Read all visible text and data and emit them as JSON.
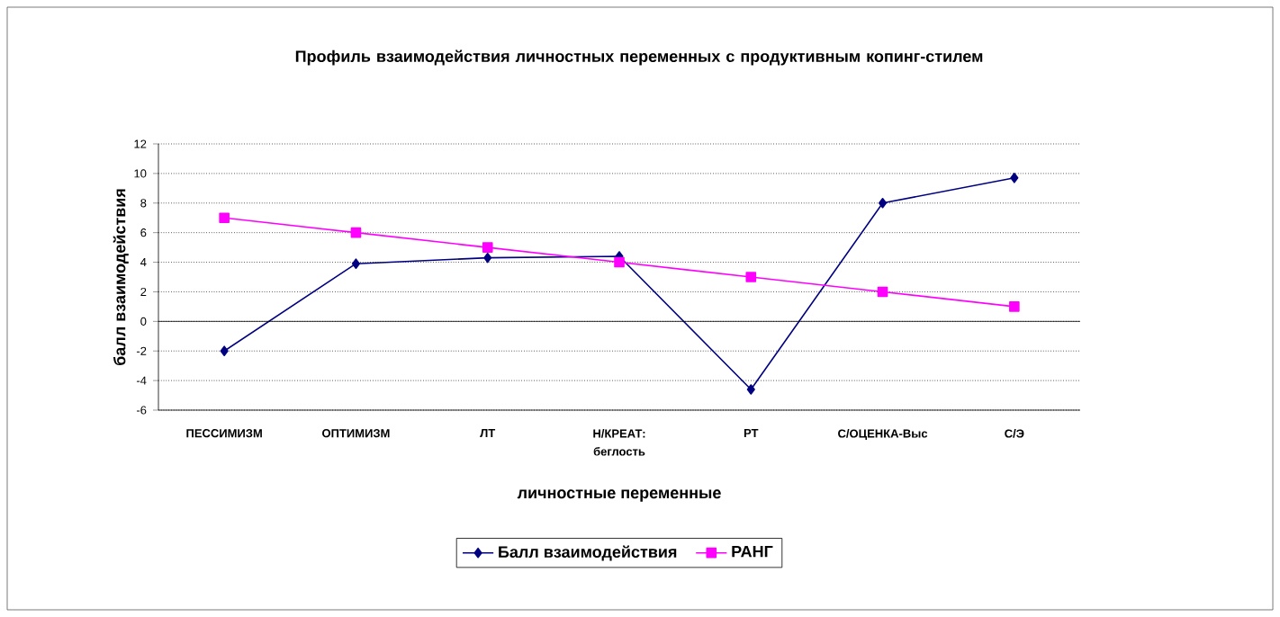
{
  "chart_data": {
    "type": "line",
    "title": "Профиль взаимодействия личностных переменных с продуктивным копинг-стилем",
    "xlabel": "личностные переменные",
    "ylabel": "балл взаимодействия",
    "categories": [
      "ПЕССИМИЗМ",
      "ОПТИМИЗМ",
      "ЛТ",
      "Н/КРЕАТ: беглость",
      "РТ",
      "С/ОЦЕНКА-Выс",
      "С/Э"
    ],
    "series": [
      {
        "name": "Балл взаимодействия",
        "color": "#000080",
        "marker": "diamond",
        "values": [
          -2,
          3.9,
          4.3,
          4.4,
          -4.6,
          8,
          9.7
        ]
      },
      {
        "name": "РАНГ",
        "color": "#ff00ff",
        "marker": "square",
        "values": [
          7,
          6,
          5,
          4,
          3,
          2,
          1
        ]
      }
    ],
    "ylim": [
      -6,
      12
    ],
    "yticks": [
      -6,
      -4,
      -2,
      0,
      2,
      4,
      6,
      8,
      10,
      12
    ],
    "grid": "y",
    "legend": "bottom"
  }
}
